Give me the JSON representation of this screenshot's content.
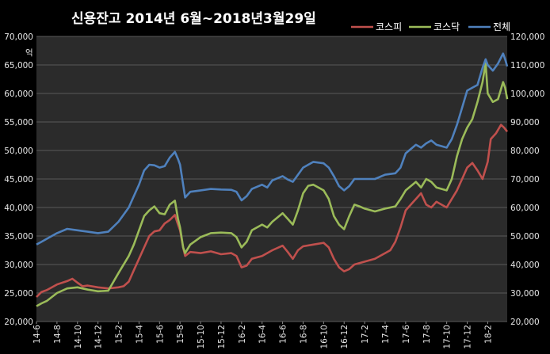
{
  "chart_data": {
    "type": "line",
    "title": "신용잔고 2014년 6월~2018년3월29일",
    "left_axis": {
      "unit": "억",
      "min": 20000,
      "max": 70000,
      "step": 5000,
      "tick_labels": [
        "20,000",
        "25,000",
        "30,000",
        "35,000",
        "40,000",
        "45,000",
        "50,000",
        "55,000",
        "60,000",
        "65,000",
        "70,000"
      ]
    },
    "right_axis": {
      "min": 20000,
      "max": 120000,
      "step": 10000,
      "tick_labels": [
        "20,000",
        "30,000",
        "40,000",
        "50,000",
        "60,000",
        "70,000",
        "80,000",
        "90,000",
        "100,000",
        "110,000",
        "120,000"
      ]
    },
    "x_tick_labels": [
      "14-6",
      "14-8",
      "14-10",
      "14-12",
      "15-2",
      "15-4",
      "15-6",
      "15-8",
      "15-10",
      "15-12",
      "16-2",
      "16-4",
      "16-6",
      "16-8",
      "16-10",
      "16-12",
      "17-2",
      "17-4",
      "17-6",
      "17-8",
      "17-10",
      "17-12",
      "18-2"
    ],
    "x_months": [
      0,
      2,
      4,
      6,
      8,
      10,
      12,
      14,
      16,
      18,
      20,
      22,
      24,
      26,
      28,
      30,
      32,
      34,
      36,
      38,
      40,
      42,
      44
    ],
    "x_range": [
      0,
      45.9
    ],
    "grid": true,
    "legend_position": "top-right",
    "series": [
      {
        "name": "코스피",
        "axis": "left",
        "color": "#c0504d",
        "points": [
          [
            0,
            24300
          ],
          [
            0.5,
            25200
          ],
          [
            1,
            25500
          ],
          [
            2,
            26500
          ],
          [
            3,
            27100
          ],
          [
            3.5,
            27500
          ],
          [
            4,
            26800
          ],
          [
            4.5,
            26200
          ],
          [
            5,
            26300
          ],
          [
            6,
            26000
          ],
          [
            7,
            25800
          ],
          [
            8,
            26000
          ],
          [
            8.5,
            26200
          ],
          [
            9,
            27000
          ],
          [
            9.5,
            29000
          ],
          [
            10,
            31000
          ],
          [
            10.5,
            33000
          ],
          [
            11,
            35000
          ],
          [
            11.5,
            35800
          ],
          [
            12,
            36000
          ],
          [
            12.5,
            37200
          ],
          [
            13,
            37800
          ],
          [
            13.5,
            38700
          ],
          [
            13.8,
            37000
          ],
          [
            14,
            36000
          ],
          [
            14.3,
            33000
          ],
          [
            14.5,
            31500
          ],
          [
            15,
            32200
          ],
          [
            16,
            32000
          ],
          [
            17,
            32300
          ],
          [
            18,
            31800
          ],
          [
            19,
            32000
          ],
          [
            19.5,
            31500
          ],
          [
            20,
            29500
          ],
          [
            20.5,
            29800
          ],
          [
            21,
            31000
          ],
          [
            22,
            31500
          ],
          [
            23,
            32500
          ],
          [
            24,
            33300
          ],
          [
            24.5,
            32200
          ],
          [
            25,
            31000
          ],
          [
            25.5,
            32500
          ],
          [
            26,
            33200
          ],
          [
            27,
            33500
          ],
          [
            28,
            33800
          ],
          [
            28.5,
            33000
          ],
          [
            29,
            31000
          ],
          [
            29.5,
            29500
          ],
          [
            30,
            28800
          ],
          [
            30.5,
            29200
          ],
          [
            31,
            30000
          ],
          [
            32,
            30500
          ],
          [
            33,
            31000
          ],
          [
            34,
            32000
          ],
          [
            34.5,
            32500
          ],
          [
            35,
            34000
          ],
          [
            35.5,
            36500
          ],
          [
            36,
            39500
          ],
          [
            37,
            41500
          ],
          [
            37.5,
            42500
          ],
          [
            38,
            40500
          ],
          [
            38.5,
            40000
          ],
          [
            39,
            41000
          ],
          [
            40,
            40000
          ],
          [
            40.5,
            41500
          ],
          [
            41,
            43000
          ],
          [
            41.5,
            45000
          ],
          [
            42,
            47000
          ],
          [
            42.5,
            47800
          ],
          [
            43,
            46500
          ],
          [
            43.5,
            45000
          ],
          [
            44,
            48000
          ],
          [
            44.3,
            52000
          ],
          [
            44.8,
            53000
          ],
          [
            45.3,
            54500
          ],
          [
            45.6,
            54000
          ],
          [
            45.9,
            53300
          ]
        ]
      },
      {
        "name": "코스닥",
        "axis": "left",
        "color": "#9bbb59",
        "points": [
          [
            0,
            22700
          ],
          [
            0.5,
            23200
          ],
          [
            1,
            23600
          ],
          [
            2,
            25000
          ],
          [
            3,
            25800
          ],
          [
            4,
            26000
          ],
          [
            5,
            25600
          ],
          [
            6,
            25300
          ],
          [
            7,
            25400
          ],
          [
            8,
            28500
          ],
          [
            9,
            31500
          ],
          [
            9.5,
            33500
          ],
          [
            10,
            36000
          ],
          [
            10.5,
            38500
          ],
          [
            11,
            39500
          ],
          [
            11.5,
            40200
          ],
          [
            12,
            39000
          ],
          [
            12.5,
            38800
          ],
          [
            13,
            40500
          ],
          [
            13.5,
            41200
          ],
          [
            13.8,
            38000
          ],
          [
            14,
            36500
          ],
          [
            14.3,
            33000
          ],
          [
            14.5,
            32000
          ],
          [
            15,
            33500
          ],
          [
            16,
            34800
          ],
          [
            17,
            35500
          ],
          [
            18,
            35600
          ],
          [
            19,
            35500
          ],
          [
            19.5,
            34800
          ],
          [
            20,
            33000
          ],
          [
            20.5,
            34000
          ],
          [
            21,
            36000
          ],
          [
            22,
            37000
          ],
          [
            22.5,
            36500
          ],
          [
            23,
            37500
          ],
          [
            24,
            39000
          ],
          [
            24.5,
            38000
          ],
          [
            25,
            37000
          ],
          [
            25.5,
            39500
          ],
          [
            26,
            42500
          ],
          [
            26.5,
            43800
          ],
          [
            27,
            44000
          ],
          [
            28,
            43000
          ],
          [
            28.5,
            41500
          ],
          [
            29,
            38500
          ],
          [
            29.5,
            37000
          ],
          [
            30,
            36200
          ],
          [
            30.5,
            38500
          ],
          [
            31,
            40500
          ],
          [
            31.5,
            40200
          ],
          [
            32,
            39800
          ],
          [
            33,
            39300
          ],
          [
            34,
            39800
          ],
          [
            35,
            40200
          ],
          [
            35.5,
            41500
          ],
          [
            36,
            43000
          ],
          [
            37,
            44500
          ],
          [
            37.5,
            43500
          ],
          [
            38,
            45000
          ],
          [
            38.5,
            44500
          ],
          [
            39,
            43500
          ],
          [
            40,
            43000
          ],
          [
            40.5,
            45000
          ],
          [
            41,
            49000
          ],
          [
            41.5,
            52000
          ],
          [
            42,
            54000
          ],
          [
            42.5,
            55500
          ],
          [
            43,
            58500
          ],
          [
            43.5,
            62000
          ],
          [
            43.8,
            65300
          ],
          [
            44,
            60000
          ],
          [
            44.5,
            58500
          ],
          [
            45,
            59000
          ],
          [
            45.5,
            62000
          ],
          [
            45.7,
            61000
          ],
          [
            45.9,
            59000
          ]
        ]
      },
      {
        "name": "전체",
        "axis": "right",
        "color": "#4f81bd",
        "points": [
          [
            0,
            47000
          ],
          [
            0.5,
            48000
          ],
          [
            1,
            49000
          ],
          [
            2,
            51000
          ],
          [
            3,
            52500
          ],
          [
            4,
            52000
          ],
          [
            5,
            51500
          ],
          [
            6,
            51000
          ],
          [
            7,
            51500
          ],
          [
            8,
            55000
          ],
          [
            9,
            60000
          ],
          [
            9.5,
            64000
          ],
          [
            10,
            68000
          ],
          [
            10.5,
            73000
          ],
          [
            11,
            75000
          ],
          [
            11.5,
            74800
          ],
          [
            12,
            74000
          ],
          [
            12.5,
            74500
          ],
          [
            13,
            77500
          ],
          [
            13.5,
            79500
          ],
          [
            13.8,
            77000
          ],
          [
            14,
            75000
          ],
          [
            14.3,
            68000
          ],
          [
            14.5,
            63500
          ],
          [
            15,
            65500
          ],
          [
            16,
            66000
          ],
          [
            17,
            66500
          ],
          [
            18,
            66300
          ],
          [
            19,
            66200
          ],
          [
            19.5,
            65500
          ],
          [
            20,
            62500
          ],
          [
            20.5,
            64000
          ],
          [
            21,
            66500
          ],
          [
            22,
            68000
          ],
          [
            22.5,
            67000
          ],
          [
            23,
            69500
          ],
          [
            24,
            71000
          ],
          [
            24.5,
            69800
          ],
          [
            25,
            69000
          ],
          [
            25.5,
            71500
          ],
          [
            26,
            74000
          ],
          [
            27,
            76000
          ],
          [
            28,
            75500
          ],
          [
            28.5,
            74000
          ],
          [
            29,
            71000
          ],
          [
            29.5,
            67500
          ],
          [
            30,
            66000
          ],
          [
            30.5,
            67500
          ],
          [
            31,
            70000
          ],
          [
            32,
            70000
          ],
          [
            33,
            70000
          ],
          [
            34,
            71500
          ],
          [
            35,
            72000
          ],
          [
            35.5,
            74000
          ],
          [
            36,
            79000
          ],
          [
            37,
            82000
          ],
          [
            37.5,
            81000
          ],
          [
            38,
            82500
          ],
          [
            38.5,
            83500
          ],
          [
            39,
            82000
          ],
          [
            40,
            81000
          ],
          [
            40.5,
            84000
          ],
          [
            41,
            89000
          ],
          [
            41.5,
            95000
          ],
          [
            42,
            101000
          ],
          [
            42.5,
            102000
          ],
          [
            43,
            103000
          ],
          [
            43.5,
            109000
          ],
          [
            43.8,
            112000
          ],
          [
            44,
            110000
          ],
          [
            44.5,
            108000
          ],
          [
            45,
            110500
          ],
          [
            45.5,
            114000
          ],
          [
            45.7,
            112000
          ],
          [
            45.9,
            109500
          ]
        ]
      }
    ]
  }
}
